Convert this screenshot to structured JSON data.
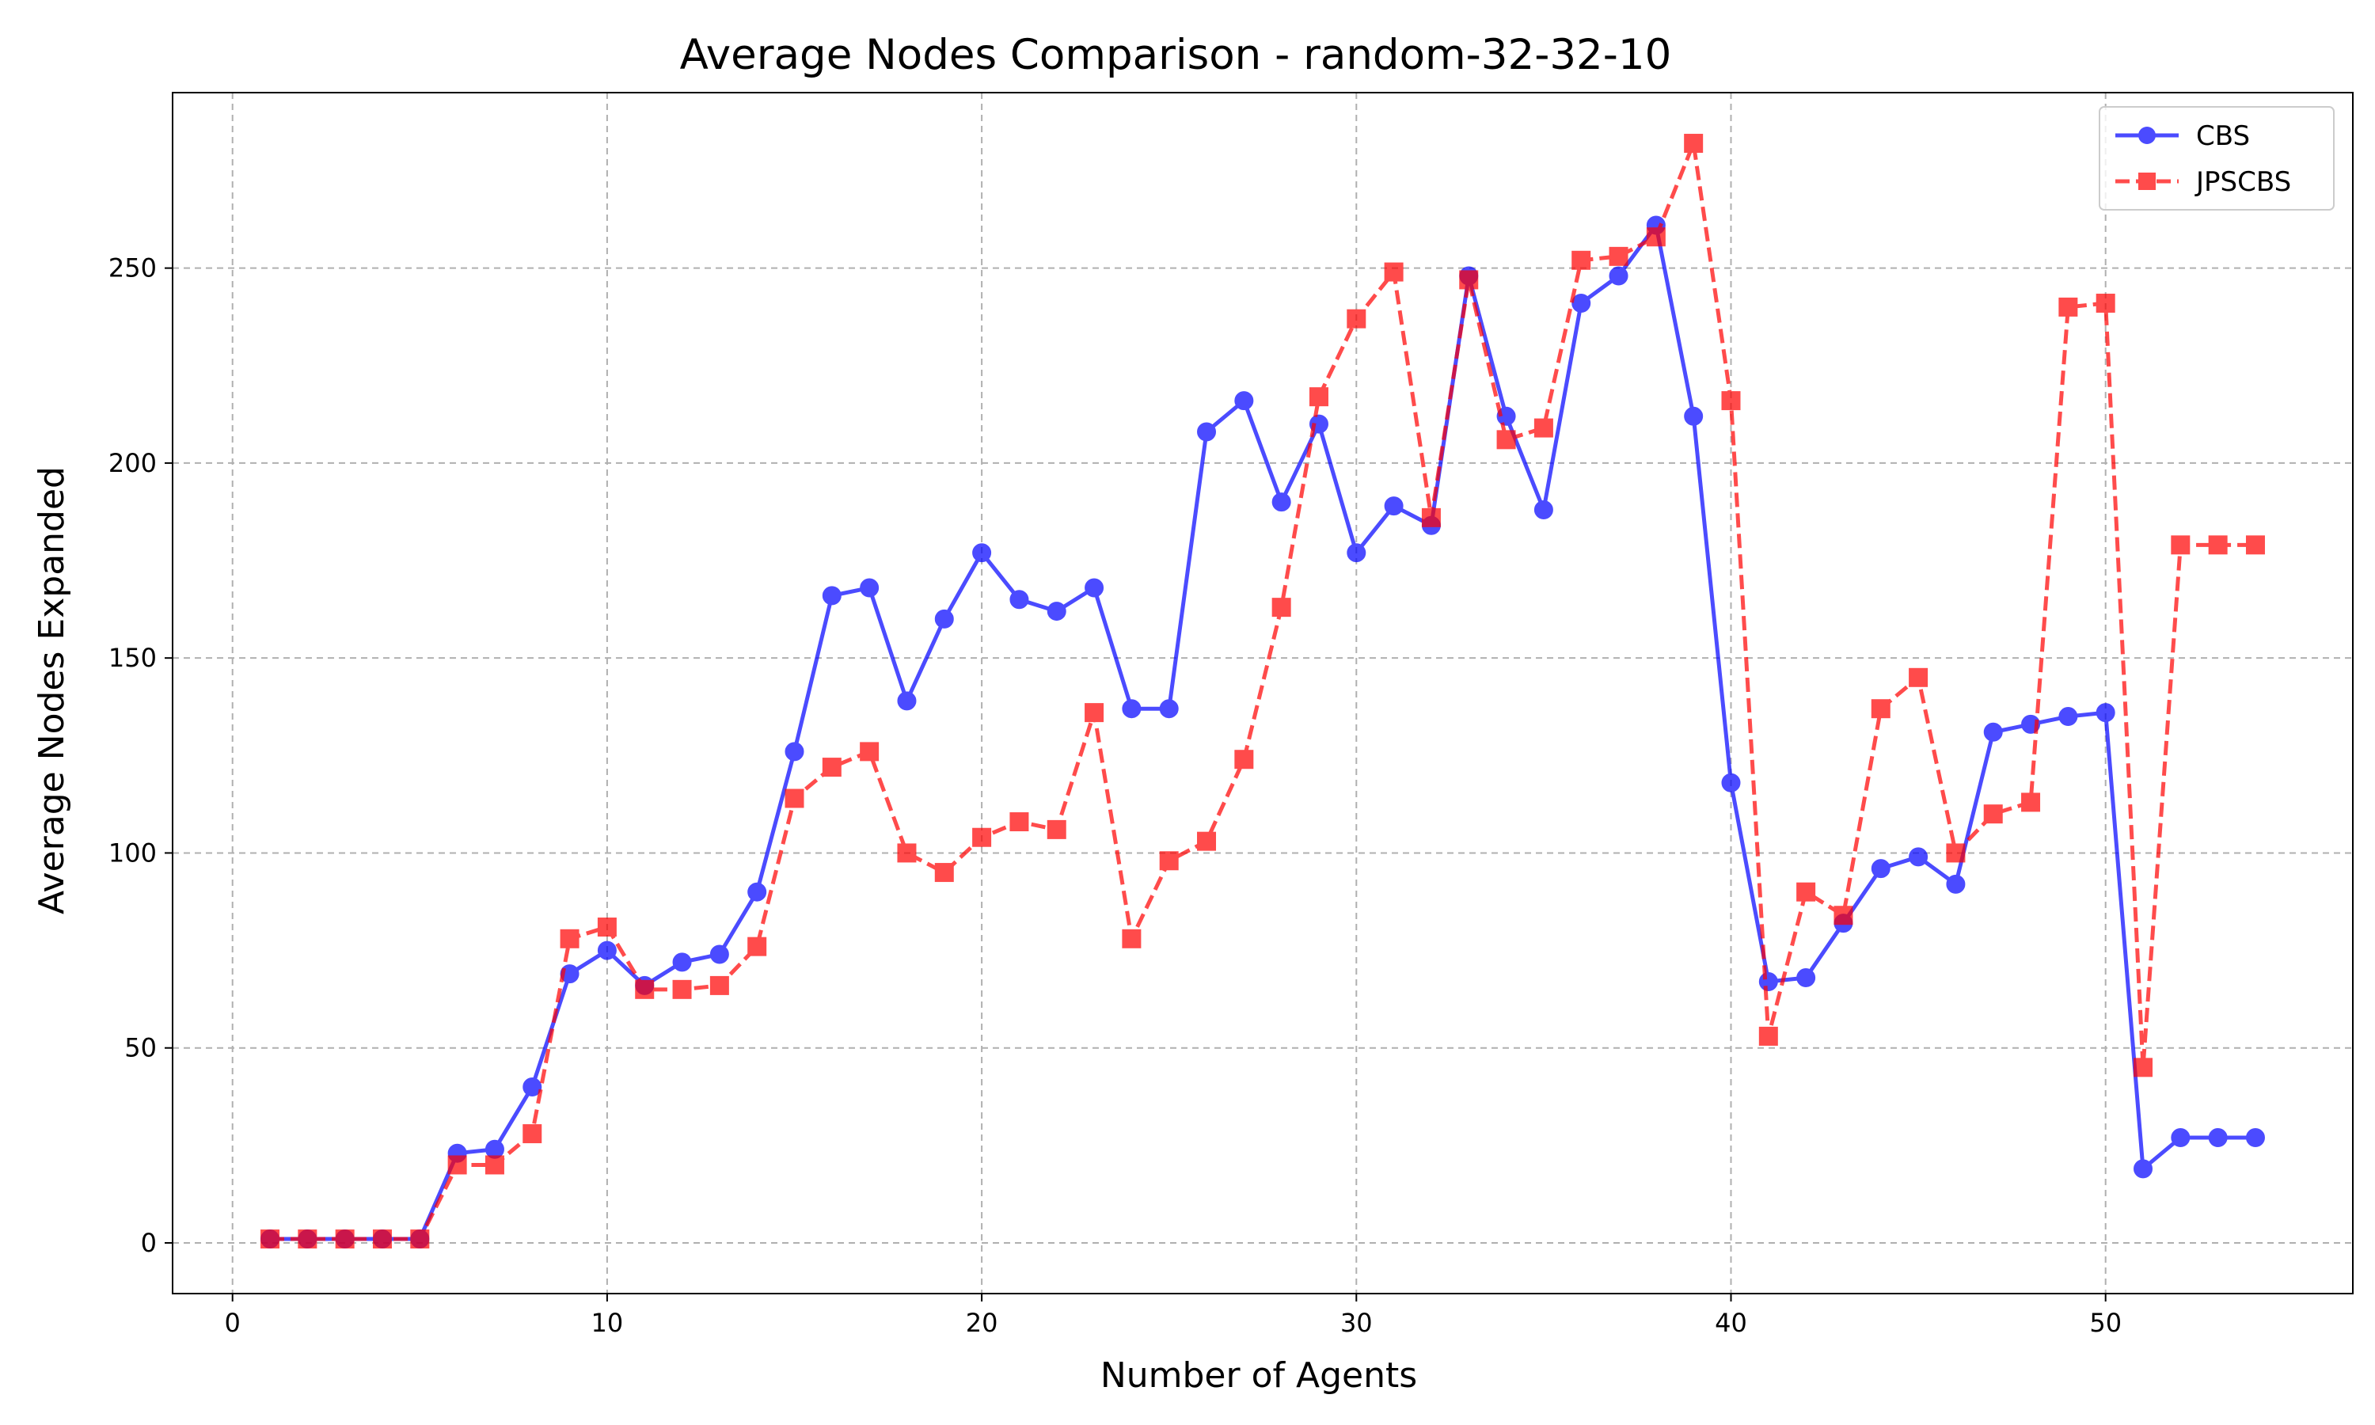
{
  "chart_data": {
    "type": "line",
    "title": "Average Nodes Comparison - random-32-32-10",
    "xlabel": "Number of Agents",
    "ylabel": "Average Nodes Expanded",
    "xlim": [
      -1.6,
      56.6
    ],
    "ylim": [
      -13,
      295
    ],
    "xticks": [
      0,
      10,
      20,
      30,
      40,
      50
    ],
    "yticks": [
      0,
      50,
      100,
      150,
      200,
      250
    ],
    "grid": true,
    "legend_position": "top-right",
    "x": [
      1,
      2,
      3,
      4,
      5,
      6,
      7,
      8,
      9,
      10,
      11,
      12,
      13,
      14,
      15,
      16,
      17,
      18,
      19,
      20,
      21,
      22,
      23,
      24,
      25,
      26,
      27,
      28,
      29,
      30,
      31,
      32,
      33,
      34,
      35,
      36,
      37,
      38,
      39,
      40,
      41,
      42,
      43,
      44,
      45,
      46,
      47,
      48,
      49,
      50,
      51,
      52,
      53,
      54
    ],
    "series": [
      {
        "name": "CBS",
        "color": "#0000ff",
        "marker": "circle",
        "linestyle": "solid",
        "values": [
          1,
          1,
          1,
          1,
          1,
          23,
          24,
          40,
          69,
          75,
          66,
          72,
          74,
          90,
          126,
          166,
          168,
          139,
          160,
          177,
          165,
          162,
          168,
          137,
          137,
          208,
          216,
          190,
          210,
          177,
          189,
          184,
          248,
          212,
          188,
          241,
          248,
          261,
          212,
          118,
          67,
          68,
          82,
          96,
          99,
          92,
          131,
          133,
          135,
          136,
          19,
          27,
          27,
          27
        ]
      },
      {
        "name": "JPSCBS",
        "color": "#ff0000",
        "marker": "square",
        "linestyle": "dashed",
        "values": [
          1,
          1,
          1,
          1,
          1,
          20,
          20,
          28,
          78,
          81,
          65,
          65,
          66,
          76,
          114,
          122,
          126,
          100,
          95,
          104,
          108,
          106,
          136,
          78,
          98,
          103,
          124,
          163,
          217,
          237,
          249,
          186,
          247,
          206,
          209,
          252,
          253,
          258,
          282,
          216,
          53,
          90,
          84,
          137,
          145,
          100,
          110,
          113,
          240,
          241,
          45,
          179,
          179,
          179
        ]
      }
    ]
  }
}
